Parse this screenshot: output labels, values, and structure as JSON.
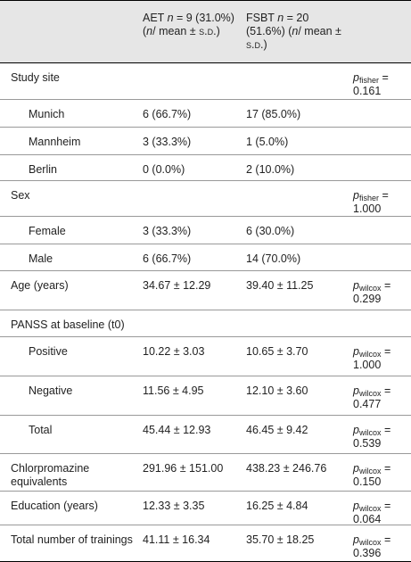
{
  "header": {
    "columns": [
      [
        "AET ",
        "n",
        " = 9 (31.0%) (",
        "n",
        "/ mean ± ",
        "s.d.",
        ")"
      ],
      [
        "FSBT ",
        "n",
        " = 20 (51.6%) (",
        "n",
        "/ mean ± ",
        "s.d.",
        ")"
      ]
    ]
  },
  "table": {
    "rows": [
      {
        "label": "Study site",
        "indent": false,
        "p": {
          "symbol": "p",
          "test": "fisher",
          "value": "= 0.161"
        }
      },
      {
        "label": "Munich",
        "indent": true,
        "aet": "6 (66.7%)",
        "fsbt": "17 (85.0%)"
      },
      {
        "label": "Mannheim",
        "indent": true,
        "aet": "3 (33.3%)",
        "fsbt": "1 (5.0%)"
      },
      {
        "label": "Berlin",
        "indent": true,
        "aet": "0 (0.0%)",
        "fsbt": "2 (10.0%)"
      },
      {
        "label": "Sex",
        "indent": false,
        "p": {
          "symbol": "p",
          "test": "fisher",
          "value": "= 1.000"
        }
      },
      {
        "label": "Female",
        "indent": true,
        "aet": "3 (33.3%)",
        "fsbt": "6 (30.0%)"
      },
      {
        "label": "Male",
        "indent": true,
        "aet": "6 (66.7%)",
        "fsbt": "14 (70.0%)"
      },
      {
        "label": "Age (years)",
        "indent": false,
        "aet": "34.67 ± 12.29",
        "fsbt": "39.40 ± 11.25",
        "p": {
          "symbol": "p",
          "test": "wilcox",
          "value": "= 0.299"
        }
      },
      {
        "label": "PANSS at baseline (t0)",
        "indent": false
      },
      {
        "label": "Positive",
        "indent": true,
        "aet": "10.22 ± 3.03",
        "fsbt": "10.65 ± 3.70",
        "p": {
          "symbol": "p",
          "test": "wilcox",
          "value": "= 1.000"
        }
      },
      {
        "label": "Negative",
        "indent": true,
        "aet": "11.56 ± 4.95",
        "fsbt": "12.10 ± 3.60",
        "p": {
          "symbol": "p",
          "test": "wilcox",
          "value": "= 0.477"
        }
      },
      {
        "label": "Total",
        "indent": true,
        "aet": "45.44 ± 12.93",
        "fsbt": "46.45 ± 9.42",
        "p": {
          "symbol": "p",
          "test": "wilcox",
          "value": "= 0.539"
        }
      },
      {
        "label": "Chlorpromazine equivalents",
        "indent": false,
        "aet": "291.96 ± 151.00",
        "fsbt": "438.23 ± 246.76",
        "p": {
          "symbol": "p",
          "test": "wilcox",
          "value": "= 0.150"
        }
      },
      {
        "label": "Education (years)",
        "indent": false,
        "aet": "12.33 ± 3.35",
        "fsbt": "16.25 ± 4.84",
        "p": {
          "symbol": "p",
          "test": "wilcox",
          "value": "= 0.064"
        }
      },
      {
        "label": "Total number of trainings",
        "indent": false,
        "aet": "41.11 ± 16.34",
        "fsbt": "35.70 ± 18.25",
        "p": {
          "symbol": "p",
          "test": "wilcox",
          "value": "= 0.396"
        }
      }
    ]
  }
}
